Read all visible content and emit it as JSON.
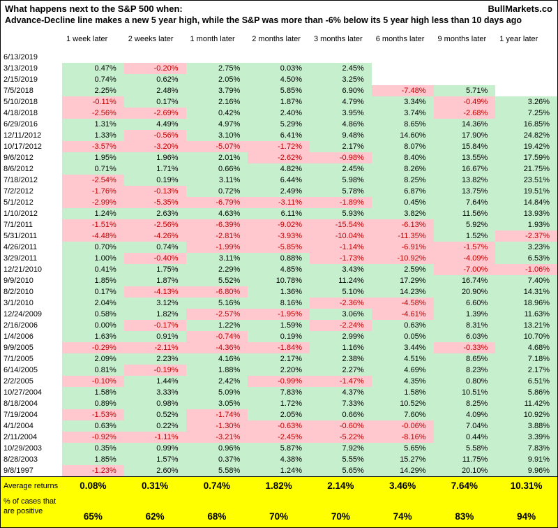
{
  "header": {
    "title": "What happens next to the S&P 500 when:",
    "brand": "BullMarkets.co",
    "subtitle": "Advance-Decline line makes a new 5 year high, while the S&P was more than -6% below its 5 year high less than 10 days ago"
  },
  "colors": {
    "positive_bg": "#C6EFCE",
    "negative_bg": "#FFC7CE",
    "positive_text": "#000000",
    "negative_text": "#C00000",
    "summary_bg": "#FFFF00"
  },
  "chart_data": {
    "type": "table",
    "title": "What happens next to the S&P 500 when: Advance-Decline line makes a new 5 year high, while the S&P was more than -6% below its 5 year high less than 10 days ago",
    "columns": [
      "1 week later",
      "2 weeks later",
      "1 month later",
      "2 months later",
      "3 months later",
      "6 months later",
      "9 months later",
      "1 year later"
    ],
    "rows": [
      {
        "date": "6/13/2019",
        "values": [
          "",
          "",
          "",
          "",
          "",
          "",
          "",
          ""
        ]
      },
      {
        "date": "3/13/2019",
        "values": [
          "0.47%",
          "-0.20%",
          "2.75%",
          "0.03%",
          "2.45%",
          "",
          "",
          ""
        ]
      },
      {
        "date": "2/15/2019",
        "values": [
          "0.74%",
          "0.62%",
          "2.05%",
          "4.50%",
          "3.25%",
          "",
          "",
          ""
        ]
      },
      {
        "date": "7/5/2018",
        "values": [
          "2.25%",
          "2.48%",
          "3.79%",
          "5.85%",
          "6.90%",
          "-7.48%",
          "5.71%",
          ""
        ]
      },
      {
        "date": "5/10/2018",
        "values": [
          "-0.11%",
          "0.17%",
          "2.16%",
          "1.87%",
          "4.79%",
          "3.34%",
          "-0.49%",
          "3.26%"
        ]
      },
      {
        "date": "4/18/2018",
        "values": [
          "-2.56%",
          "-2.69%",
          "0.42%",
          "2.40%",
          "3.95%",
          "3.74%",
          "-2.68%",
          "7.25%"
        ]
      },
      {
        "date": "6/29/2016",
        "values": [
          "1.31%",
          "4.49%",
          "4.97%",
          "5.29%",
          "4.86%",
          "8.65%",
          "14.36%",
          "16.85%"
        ]
      },
      {
        "date": "12/11/2012",
        "values": [
          "1.33%",
          "-0.56%",
          "3.10%",
          "6.41%",
          "9.48%",
          "14.60%",
          "17.90%",
          "24.82%"
        ]
      },
      {
        "date": "10/17/2012",
        "values": [
          "-3.57%",
          "-3.20%",
          "-5.07%",
          "-1.72%",
          "2.17%",
          "8.07%",
          "15.84%",
          "19.42%"
        ]
      },
      {
        "date": "9/6/2012",
        "values": [
          "1.95%",
          "1.96%",
          "2.01%",
          "-2.62%",
          "-0.98%",
          "8.40%",
          "13.55%",
          "17.59%"
        ]
      },
      {
        "date": "8/6/2012",
        "values": [
          "0.71%",
          "1.71%",
          "0.66%",
          "4.82%",
          "2.45%",
          "8.26%",
          "16.67%",
          "21.75%"
        ]
      },
      {
        "date": "7/18/2012",
        "values": [
          "-2.54%",
          "0.19%",
          "3.11%",
          "6.44%",
          "5.98%",
          "8.25%",
          "13.82%",
          "23.51%"
        ]
      },
      {
        "date": "7/2/2012",
        "values": [
          "-1.76%",
          "-0.13%",
          "0.72%",
          "2.49%",
          "5.78%",
          "6.87%",
          "13.75%",
          "19.51%"
        ]
      },
      {
        "date": "5/1/2012",
        "values": [
          "-2.99%",
          "-5.35%",
          "-6.79%",
          "-3.11%",
          "-1.89%",
          "0.45%",
          "7.64%",
          "14.84%"
        ]
      },
      {
        "date": "1/10/2012",
        "values": [
          "1.24%",
          "2.63%",
          "4.63%",
          "6.11%",
          "5.93%",
          "3.82%",
          "11.56%",
          "13.93%"
        ]
      },
      {
        "date": "7/1/2011",
        "values": [
          "-1.51%",
          "-2.56%",
          "-6.39%",
          "-9.02%",
          "-15.54%",
          "-6.13%",
          "5.92%",
          "1.93%"
        ]
      },
      {
        "date": "5/31/2011",
        "values": [
          "-4.48%",
          "-4.26%",
          "-2.81%",
          "-3.93%",
          "-10.04%",
          "-11.35%",
          "1.52%",
          "-2.37%"
        ]
      },
      {
        "date": "4/26/2011",
        "values": [
          "0.70%",
          "0.74%",
          "-1.99%",
          "-5.85%",
          "-1.14%",
          "-6.91%",
          "-1.57%",
          "3.23%"
        ]
      },
      {
        "date": "3/29/2011",
        "values": [
          "1.00%",
          "-0.40%",
          "3.11%",
          "0.88%",
          "-1.73%",
          "-10.92%",
          "-4.09%",
          "6.53%"
        ]
      },
      {
        "date": "12/21/2010",
        "values": [
          "0.41%",
          "1.75%",
          "2.29%",
          "4.85%",
          "3.43%",
          "2.59%",
          "-7.00%",
          "-1.06%"
        ]
      },
      {
        "date": "9/9/2010",
        "values": [
          "1.85%",
          "1.87%",
          "5.52%",
          "10.78%",
          "11.24%",
          "17.29%",
          "16.74%",
          "7.40%"
        ]
      },
      {
        "date": "8/2/2010",
        "values": [
          "0.17%",
          "-4.13%",
          "-6.80%",
          "1.36%",
          "5.10%",
          "14.23%",
          "20.90%",
          "14.31%"
        ]
      },
      {
        "date": "3/1/2010",
        "values": [
          "2.04%",
          "3.12%",
          "5.16%",
          "8.16%",
          "-2.36%",
          "-4.58%",
          "6.60%",
          "18.96%"
        ]
      },
      {
        "date": "12/24/2009",
        "values": [
          "0.58%",
          "1.82%",
          "-2.57%",
          "-1.95%",
          "3.06%",
          "-4.61%",
          "1.39%",
          "11.63%"
        ]
      },
      {
        "date": "2/16/2006",
        "values": [
          "0.00%",
          "-0.17%",
          "1.22%",
          "1.59%",
          "-2.24%",
          "0.63%",
          "8.31%",
          "13.21%"
        ]
      },
      {
        "date": "1/4/2006",
        "values": [
          "1.63%",
          "0.91%",
          "-0.74%",
          "0.19%",
          "2.99%",
          "0.05%",
          "6.03%",
          "10.70%"
        ]
      },
      {
        "date": "9/9/2005",
        "values": [
          "-0.29%",
          "-2.11%",
          "-4.36%",
          "-1.84%",
          "1.16%",
          "3.44%",
          "-0.33%",
          "4.68%"
        ]
      },
      {
        "date": "7/1/2005",
        "values": [
          "2.09%",
          "2.23%",
          "4.16%",
          "2.17%",
          "2.38%",
          "4.51%",
          "8.65%",
          "7.18%"
        ]
      },
      {
        "date": "6/14/2005",
        "values": [
          "0.81%",
          "-0.19%",
          "1.88%",
          "2.20%",
          "2.27%",
          "4.69%",
          "8.23%",
          "2.17%"
        ]
      },
      {
        "date": "2/2/2005",
        "values": [
          "-0.10%",
          "1.44%",
          "2.42%",
          "-0.99%",
          "-1.47%",
          "4.35%",
          "0.80%",
          "6.51%"
        ]
      },
      {
        "date": "10/27/2004",
        "values": [
          "1.58%",
          "3.33%",
          "5.09%",
          "7.83%",
          "4.37%",
          "1.58%",
          "10.51%",
          "5.86%"
        ]
      },
      {
        "date": "8/18/2004",
        "values": [
          "0.89%",
          "0.98%",
          "3.05%",
          "1.72%",
          "7.33%",
          "10.52%",
          "8.25%",
          "11.42%"
        ]
      },
      {
        "date": "7/19/2004",
        "values": [
          "-1.53%",
          "0.52%",
          "-1.74%",
          "2.05%",
          "0.66%",
          "7.60%",
          "4.09%",
          "10.92%"
        ]
      },
      {
        "date": "4/1/2004",
        "values": [
          "0.63%",
          "0.22%",
          "-1.30%",
          "-0.63%",
          "-0.60%",
          "-0.06%",
          "7.04%",
          "3.88%"
        ]
      },
      {
        "date": "2/11/2004",
        "values": [
          "-0.92%",
          "-1.11%",
          "-3.21%",
          "-2.45%",
          "-5.22%",
          "-8.16%",
          "0.44%",
          "3.39%"
        ]
      },
      {
        "date": "10/29/2003",
        "values": [
          "0.35%",
          "0.99%",
          "0.96%",
          "5.87%",
          "7.92%",
          "5.65%",
          "5.58%",
          "7.83%"
        ]
      },
      {
        "date": "8/28/2003",
        "values": [
          "1.85%",
          "1.57%",
          "0.37%",
          "4.38%",
          "5.55%",
          "15.27%",
          "11.75%",
          "9.91%"
        ]
      },
      {
        "date": "9/8/1997",
        "values": [
          "-1.23%",
          "2.60%",
          "5.58%",
          "1.24%",
          "5.65%",
          "14.29%",
          "20.10%",
          "9.96%"
        ]
      }
    ],
    "summary": [
      {
        "label": "Average returns",
        "values": [
          "0.08%",
          "0.31%",
          "0.74%",
          "1.82%",
          "2.14%",
          "3.46%",
          "7.64%",
          "10.31%"
        ]
      },
      {
        "label": "% of cases that are positive",
        "values": [
          "65%",
          "62%",
          "68%",
          "70%",
          "70%",
          "74%",
          "83%",
          "94%"
        ]
      }
    ]
  }
}
